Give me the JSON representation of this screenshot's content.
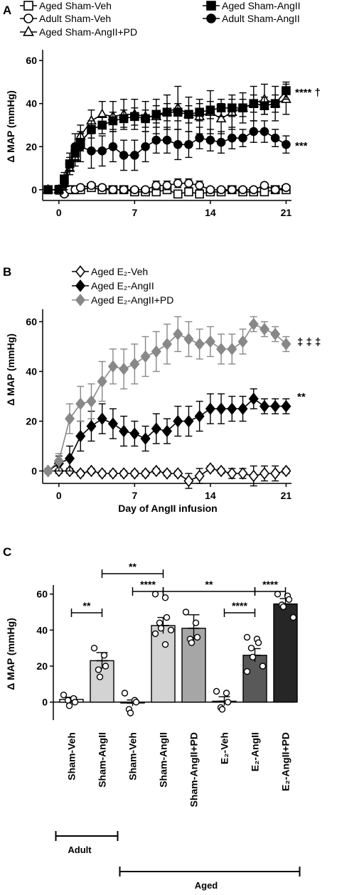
{
  "panel_a": {
    "letter": "A",
    "legend": [
      "Aged Sham-Veh",
      "Adult Sham-Veh",
      "Aged Sham-AngII+PD",
      "Aged Sham-AngII",
      "Adult Sham-AngII"
    ],
    "ylabel": "Δ MAP (mmHg)",
    "sig_top": "**** †",
    "sig_mid": "***"
  },
  "panel_b": {
    "letter": "B",
    "legend": [
      "Aged E₂-Veh",
      "Aged E₂-AngII",
      "Aged E₂-AngII+PD"
    ],
    "ylabel": "Δ MAP (mmHg)",
    "xlabel": "Day of AngII infusion",
    "sig_top": "‡ ‡ ‡",
    "sig_mid": "**"
  },
  "panel_c": {
    "letter": "C",
    "ylabel": "Δ MAP (mmHg)",
    "group_adult": "Adult",
    "group_aged": "Aged",
    "brackets": [
      "**",
      "**",
      "****",
      "**",
      "****",
      "****"
    ]
  },
  "colors": {
    "black": "#000000",
    "dark_gray": "#333333",
    "mid_gray": "#888888",
    "light_gray": "#d3d3d3",
    "bar_mid": "#a6a6a6",
    "bar_dark": "#595959",
    "bar_darkest": "#262626"
  },
  "chart_data": [
    {
      "type": "line",
      "panel": "A",
      "ylabel": "Δ MAP (mmHg)",
      "xlabel": "",
      "xlim": [
        -1.5,
        21.5
      ],
      "ylim": [
        -5,
        65
      ],
      "xticks": [
        0,
        7,
        14,
        21
      ],
      "yticks": [
        0,
        20,
        40,
        60
      ],
      "x": [
        -1,
        0,
        0.5,
        1,
        1.5,
        2,
        3,
        4,
        5,
        6,
        7,
        8,
        9,
        10,
        11,
        12,
        13,
        14,
        15,
        16,
        17,
        18,
        19,
        20,
        21
      ],
      "series": [
        {
          "name": "Aged Sham-Veh",
          "marker": "square-open",
          "y": [
            0,
            0,
            -1,
            0,
            0,
            0,
            1,
            0,
            0,
            0,
            -1,
            -1,
            -1,
            0,
            -2,
            -1,
            -2,
            -1,
            -1,
            0,
            -1,
            -1,
            -1,
            0,
            0
          ],
          "err": [
            1,
            1,
            1,
            1,
            1,
            1,
            1,
            1,
            1,
            1,
            1,
            1,
            1,
            1,
            1,
            1,
            1,
            1,
            1,
            1,
            1,
            1,
            1,
            1,
            1
          ]
        },
        {
          "name": "Adult Sham-Veh",
          "marker": "circle-open",
          "y": [
            0,
            0,
            -2,
            0,
            0,
            1,
            2,
            1,
            0,
            0,
            0,
            0,
            2,
            2,
            3,
            3,
            2,
            0,
            0,
            0,
            0,
            0,
            2,
            0,
            1
          ],
          "err": [
            1,
            1,
            1,
            1,
            1,
            1,
            1,
            1,
            1,
            1,
            1,
            1,
            2,
            2,
            2,
            2,
            2,
            1,
            1,
            1,
            1,
            1,
            1,
            1,
            1
          ]
        },
        {
          "name": "Aged Sham-AngII+PD",
          "marker": "triangle-open",
          "y": [
            0,
            0,
            3,
            10,
            15,
            25,
            32,
            35,
            34,
            35,
            35,
            34,
            34,
            36,
            38,
            35,
            34,
            36,
            33,
            36,
            38,
            40,
            42,
            40,
            42
          ],
          "err": [
            1,
            2,
            3,
            3,
            4,
            5,
            5,
            6,
            7,
            7,
            7,
            7,
            8,
            8,
            10,
            8,
            8,
            10,
            7,
            8,
            7,
            8,
            7,
            8,
            7
          ]
        },
        {
          "name": "Aged Sham-AngII",
          "marker": "square-filled",
          "y": [
            0,
            0,
            5,
            12,
            17,
            22,
            28,
            30,
            32,
            33,
            34,
            33,
            35,
            36,
            36,
            35,
            36,
            37,
            38,
            38,
            38,
            40,
            39,
            40,
            46
          ],
          "err": [
            1,
            2,
            3,
            3,
            4,
            4,
            4,
            4,
            4,
            4,
            4,
            4,
            4,
            4,
            4,
            4,
            4,
            4,
            4,
            4,
            4,
            4,
            4,
            4,
            4
          ]
        },
        {
          "name": "Adult Sham-AngII",
          "marker": "circle-filled",
          "y": [
            0,
            0,
            3,
            12,
            20,
            20,
            18,
            18,
            20,
            16,
            16,
            20,
            23,
            23,
            21,
            21,
            24,
            23,
            22,
            24,
            24,
            27,
            27,
            24,
            21
          ],
          "err": [
            1,
            2,
            3,
            5,
            6,
            7,
            8,
            7,
            7,
            7,
            7,
            7,
            6,
            6,
            7,
            6,
            5,
            5,
            5,
            5,
            4,
            5,
            5,
            4,
            4
          ]
        }
      ],
      "annotations": [
        "**** †",
        "***"
      ]
    },
    {
      "type": "line",
      "panel": "B",
      "ylabel": "Δ MAP (mmHg)",
      "xlabel": "Day of AngII infusion",
      "xlim": [
        -1.5,
        21.5
      ],
      "ylim": [
        -5,
        65
      ],
      "xticks": [
        0,
        7,
        14,
        21
      ],
      "yticks": [
        0,
        20,
        40,
        60
      ],
      "x": [
        -1,
        0,
        1,
        2,
        3,
        4,
        5,
        6,
        7,
        8,
        9,
        10,
        11,
        12,
        13,
        14,
        15,
        16,
        17,
        18,
        19,
        20,
        21
      ],
      "series": [
        {
          "name": "Aged E₂-Veh",
          "marker": "diamond-open",
          "y": [
            0,
            0,
            0,
            -1,
            0,
            -1,
            -1,
            -1,
            -1,
            -1,
            0,
            -1,
            -1,
            -4,
            -2,
            1,
            0,
            -1,
            -1,
            -2,
            -1,
            -1,
            0
          ],
          "err": [
            1,
            1,
            1,
            1,
            1,
            1,
            1,
            1,
            1,
            1,
            1,
            1,
            1,
            3,
            3,
            1,
            1,
            2,
            2,
            4,
            3,
            3,
            1
          ]
        },
        {
          "name": "Aged E₂-AngII",
          "marker": "diamond-filled",
          "y": [
            0,
            3,
            5,
            14,
            18,
            21,
            19,
            16,
            15,
            13,
            17,
            16,
            20,
            20,
            22,
            25,
            25,
            25,
            25,
            29,
            26,
            26,
            26
          ],
          "err": [
            1,
            3,
            5,
            6,
            6,
            6,
            6,
            6,
            5,
            5,
            6,
            5,
            6,
            6,
            6,
            6,
            6,
            5,
            5,
            4,
            3,
            3,
            3
          ]
        },
        {
          "name": "Aged E₂-AngII+PD",
          "marker": "diamond-gray",
          "y": [
            0,
            4,
            21,
            27,
            28,
            36,
            42,
            41,
            43,
            46,
            48,
            51,
            55,
            53,
            51,
            52,
            49,
            49,
            52,
            59,
            57,
            55,
            51
          ],
          "err": [
            1,
            3,
            6,
            7,
            7,
            8,
            7,
            8,
            8,
            8,
            8,
            8,
            7,
            7,
            6,
            6,
            6,
            6,
            5,
            3,
            3,
            3,
            3
          ]
        }
      ],
      "annotations": [
        "‡ ‡ ‡",
        "**"
      ]
    },
    {
      "type": "bar",
      "panel": "C",
      "ylabel": "Δ MAP (mmHg)",
      "ylim": [
        -10,
        65
      ],
      "yticks": [
        0,
        20,
        40,
        60
      ],
      "categories": [
        "Sham-Veh",
        "Sham-AngII",
        "Sham-Veh",
        "Sham-AngII",
        "Sham-AngII+PD",
        "E₂-Veh",
        "E₂-AngII",
        "E₂-AngII+PD"
      ],
      "groups": [
        {
          "name": "Adult",
          "categories": [
            0,
            1
          ]
        },
        {
          "name": "Aged",
          "categories": [
            2,
            3,
            4,
            5,
            6,
            7
          ]
        }
      ],
      "values": [
        1.5,
        23,
        -0.5,
        42.5,
        41,
        0.5,
        26,
        54.5
      ],
      "errors": [
        1.2,
        4.5,
        1.7,
        4.5,
        7.5,
        2.5,
        3.7,
        3
      ],
      "colors": [
        "#ffffff",
        "#d3d3d3",
        "#ffffff",
        "#d3d3d3",
        "#a6a6a6",
        "#ffffff",
        "#595959",
        "#262626"
      ],
      "points": [
        [
          4,
          2,
          0,
          1,
          -2
        ],
        [
          30,
          26,
          20,
          18,
          14
        ],
        [
          5,
          1,
          0,
          -4,
          -6
        ],
        [
          60,
          58,
          47,
          44,
          41,
          40,
          38,
          32
        ],
        [
          50,
          44,
          36,
          35,
          33
        ],
        [
          6,
          5,
          0,
          -3,
          -4
        ],
        [
          36,
          35,
          33,
          30,
          25,
          20,
          17
        ],
        [
          60,
          59,
          57,
          54,
          53,
          47
        ]
      ],
      "brackets": [
        {
          "from": 0,
          "to": 1,
          "label": "**"
        },
        {
          "from": 1,
          "to": 3,
          "label": "**"
        },
        {
          "from": 2,
          "to": 3,
          "label": "****"
        },
        {
          "from": 3,
          "to": 6,
          "label": "**"
        },
        {
          "from": 5,
          "to": 6,
          "label": "****"
        },
        {
          "from": 6,
          "to": 7,
          "label": "****"
        }
      ]
    }
  ]
}
